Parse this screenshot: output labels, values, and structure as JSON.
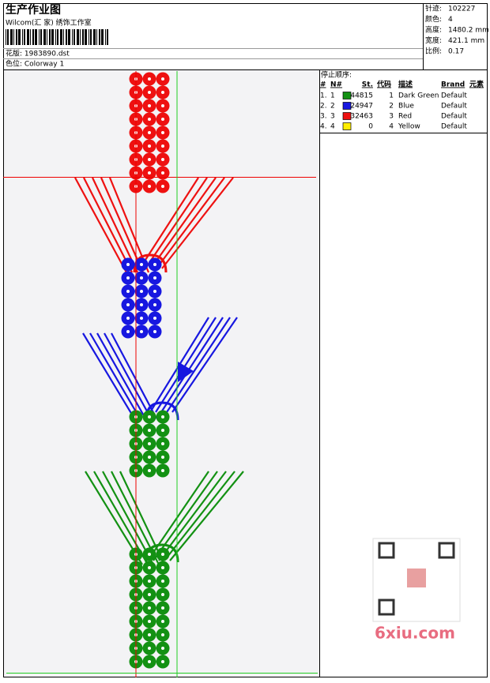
{
  "header": {
    "title": "生产作业图",
    "subtitle": "Wilcom(汇 家) 绣饰工作室",
    "design": "花版: 1983890.dst",
    "colorway": "色位: Colorway 1"
  },
  "info": [
    {
      "label": "针迹:",
      "value": "102227"
    },
    {
      "label": "颜色:",
      "value": "4"
    },
    {
      "label": "高度:",
      "value": "1480.2 mm"
    },
    {
      "label": "宽度:",
      "value": "421.1 mm"
    },
    {
      "label": "比例:",
      "value": "0.17"
    }
  ],
  "stop_sequence": {
    "title": "停止顺序:",
    "columns": [
      "#",
      "N#",
      "St.",
      "代码",
      "描述",
      "Brand",
      "元素"
    ],
    "rows": [
      {
        "index": "1.",
        "needle": "1",
        "color": "#139113",
        "stitches": "44815",
        "code": "1",
        "description": "Dark Green",
        "brand": "Default"
      },
      {
        "index": "2.",
        "needle": "2",
        "color": "#1717e0",
        "stitches": "24947",
        "code": "2",
        "description": "Blue",
        "brand": "Default"
      },
      {
        "index": "3.",
        "needle": "3",
        "color": "#ee1111",
        "stitches": "32463",
        "code": "3",
        "description": "Red",
        "brand": "Default"
      },
      {
        "index": "4.",
        "needle": "4",
        "color": "#ffee00",
        "stitches": "0",
        "code": "4",
        "description": "Yellow",
        "brand": "Default"
      }
    ]
  },
  "watermark": "6xiu.com"
}
